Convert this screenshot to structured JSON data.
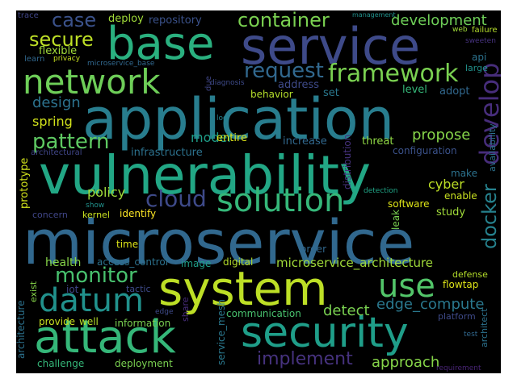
{
  "wordcloud": {
    "words": [
      {
        "text": "microservice",
        "color": "#31688e",
        "icon": null
      },
      {
        "text": "application",
        "color": "#287d8e"
      },
      {
        "text": "vulnerability",
        "color": "#22a785"
      },
      {
        "text": "service",
        "color": "#3e4a89"
      },
      {
        "text": "base",
        "color": "#2ab07f"
      },
      {
        "text": "system",
        "color": "#bddf26"
      },
      {
        "text": "security",
        "color": "#1f9e89"
      },
      {
        "text": "attack",
        "color": "#35b779"
      },
      {
        "text": "network",
        "color": "#6ece58"
      },
      {
        "text": "solution",
        "color": "#35b779"
      },
      {
        "text": "datum",
        "color": "#21918c"
      },
      {
        "text": "use",
        "color": "#52c569"
      },
      {
        "text": "framework",
        "color": "#7ad151"
      },
      {
        "text": "container",
        "color": "#7ad151"
      },
      {
        "text": "request",
        "color": "#31688e"
      },
      {
        "text": "cloud",
        "color": "#3e4a89"
      },
      {
        "text": "monitor",
        "color": "#48c16e"
      },
      {
        "text": "pattern",
        "color": "#5ec962"
      },
      {
        "text": "develop",
        "color": "#472d7b"
      },
      {
        "text": "docker",
        "color": "#26828e"
      },
      {
        "text": "case",
        "color": "#3b528b"
      },
      {
        "text": "secure",
        "color": "#bddf26"
      },
      {
        "text": "development",
        "color": "#6ece58"
      },
      {
        "text": "implement",
        "color": "#46327e"
      },
      {
        "text": "edge_compute",
        "color": "#2a788e"
      },
      {
        "text": "microservice_architecture",
        "color": "#a0da39"
      },
      {
        "text": "approach",
        "color": "#86d549"
      },
      {
        "text": "propose",
        "color": "#86d549"
      },
      {
        "text": "design",
        "color": "#2c728e"
      },
      {
        "text": "spring",
        "color": "#d2e21b"
      },
      {
        "text": "policy",
        "color": "#a0da39"
      },
      {
        "text": "cyber",
        "color": "#bddf26"
      },
      {
        "text": "detect",
        "color": "#7ad151"
      },
      {
        "text": "model",
        "color": "#1f9e89"
      },
      {
        "text": "health",
        "color": "#86d549"
      },
      {
        "text": "deploy",
        "color": "#a0da39"
      },
      {
        "text": "repository",
        "color": "#3b528b"
      },
      {
        "text": "flexible",
        "color": "#a0da39"
      },
      {
        "text": "learn",
        "color": "#31688e"
      },
      {
        "text": "privacy",
        "color": "#c8e020"
      },
      {
        "text": "microservice_base",
        "color": "#31688e"
      },
      {
        "text": "architectural",
        "color": "#404688"
      },
      {
        "text": "infrastructure",
        "color": "#2c728e"
      },
      {
        "text": "entire",
        "color": "#dde318"
      },
      {
        "text": "increase",
        "color": "#31688e"
      },
      {
        "text": "threat",
        "color": "#8fd744"
      },
      {
        "text": "configuration",
        "color": "#3b528b"
      },
      {
        "text": "behavior",
        "color": "#b5de2b"
      },
      {
        "text": "set",
        "color": "#2a788e"
      },
      {
        "text": "level",
        "color": "#35b779"
      },
      {
        "text": "adopt",
        "color": "#31688e"
      },
      {
        "text": "address",
        "color": "#3e4a89"
      },
      {
        "text": "diagnosis",
        "color": "#3e4a89"
      },
      {
        "text": "due",
        "color": "#404688"
      },
      {
        "text": "log",
        "color": "#26828e"
      },
      {
        "text": "distribution",
        "color": "#46327e"
      },
      {
        "text": "availability",
        "color": "#2c728e"
      },
      {
        "text": "make",
        "color": "#2c728e"
      },
      {
        "text": "enable",
        "color": "#c8e020"
      },
      {
        "text": "detection",
        "color": "#20a486"
      },
      {
        "text": "software",
        "color": "#dde318"
      },
      {
        "text": "study",
        "color": "#a0da39"
      },
      {
        "text": "leak",
        "color": "#7ad151"
      },
      {
        "text": "prototype",
        "color": "#d2e21b"
      },
      {
        "text": "concern",
        "color": "#404688"
      },
      {
        "text": "show",
        "color": "#21918c"
      },
      {
        "text": "kernel",
        "color": "#c8e020"
      },
      {
        "text": "identify",
        "color": "#fde725"
      },
      {
        "text": "time",
        "color": "#dde318"
      },
      {
        "text": "order",
        "color": "#31688e"
      },
      {
        "text": "access_control",
        "color": "#2c728e"
      },
      {
        "text": "image",
        "color": "#1f9e89"
      },
      {
        "text": "digital",
        "color": "#b5de2b"
      },
      {
        "text": "defense",
        "color": "#b5de2b"
      },
      {
        "text": "flowtap",
        "color": "#dde318"
      },
      {
        "text": "iot",
        "color": "#404688"
      },
      {
        "text": "tactic",
        "color": "#3e4a89"
      },
      {
        "text": "exist",
        "color": "#86d549"
      },
      {
        "text": "architecture",
        "color": "#2c728e"
      },
      {
        "text": "edge",
        "color": "#3e4a89"
      },
      {
        "text": "share",
        "color": "#472d7b"
      },
      {
        "text": "service_mesh",
        "color": "#2a788e"
      },
      {
        "text": "communication",
        "color": "#48c16e"
      },
      {
        "text": "platform",
        "color": "#3e4a89"
      },
      {
        "text": "architect",
        "color": "#2c728e"
      },
      {
        "text": "provide",
        "color": "#c8e020"
      },
      {
        "text": "well",
        "color": "#b5de2b"
      },
      {
        "text": "information",
        "color": "#7ad151"
      },
      {
        "text": "test",
        "color": "#31688e"
      },
      {
        "text": "challenge",
        "color": "#35b779"
      },
      {
        "text": "deployment",
        "color": "#7ad151"
      },
      {
        "text": "requirement",
        "color": "#482475"
      },
      {
        "text": "trace",
        "color": "#404688"
      },
      {
        "text": "management",
        "color": "#21918c"
      },
      {
        "text": "web",
        "color": "#a0da39"
      },
      {
        "text": "failure",
        "color": "#b5de2b"
      },
      {
        "text": "sweeten",
        "color": "#46327e"
      },
      {
        "text": "api",
        "color": "#2c728e"
      },
      {
        "text": "large",
        "color": "#21918c"
      }
    ]
  }
}
